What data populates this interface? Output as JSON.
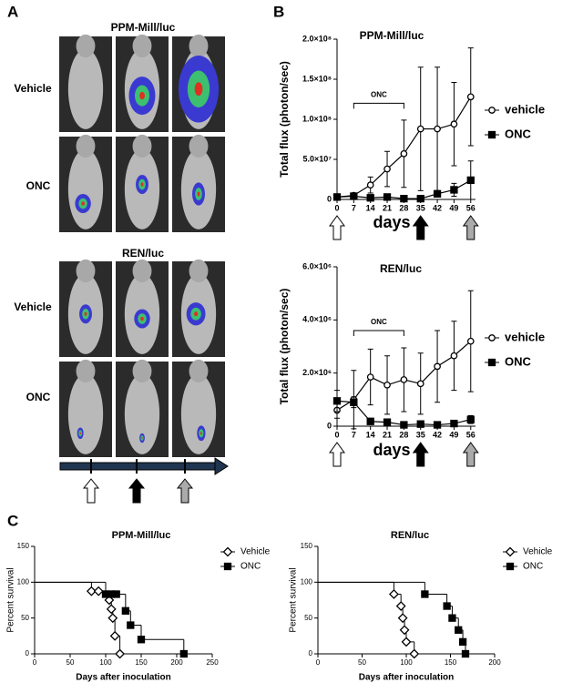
{
  "panels": [
    "A",
    "B",
    "C"
  ],
  "panel_a": {
    "groups": [
      {
        "title": "PPM-Mill/luc",
        "rows": [
          "Vehicle",
          "ONC"
        ]
      },
      {
        "title": "REN/luc",
        "rows": [
          "Vehicle",
          "ONC"
        ]
      }
    ]
  },
  "chart_data": [
    {
      "type": "line",
      "title": "PPM-Mill/luc",
      "y_label": "Total flux (photon/sec)",
      "x_label": "days",
      "annotation": "ONC",
      "x": [
        0,
        7,
        14,
        21,
        28,
        35,
        42,
        49,
        56
      ],
      "xlim": [
        0,
        58
      ],
      "xticks": [
        0,
        7,
        14,
        21,
        28,
        35,
        42,
        49,
        56
      ],
      "ylim": [
        0,
        200000000
      ],
      "yticks": [
        0,
        {
          "value": 50000000,
          "label": "5.0×10⁷"
        },
        {
          "value": 100000000,
          "label": "1.0×10⁸"
        },
        {
          "value": 150000000,
          "label": "1.5×10⁸"
        },
        {
          "value": 200000000,
          "label": "2.0×10⁸"
        }
      ],
      "series": [
        {
          "name": "vehicle",
          "color": "#000000",
          "marker": "circle-open",
          "values": [
            3000000,
            5000000,
            18000000,
            38000000,
            57000000,
            88000000,
            88000000,
            94000000,
            128000000
          ],
          "errors": [
            2000000,
            3000000,
            10000000,
            22000000,
            42000000,
            77000000,
            77000000,
            52000000,
            61000000
          ]
        },
        {
          "name": "ONC",
          "color": "#000000",
          "marker": "square",
          "values": [
            3000000,
            4000000,
            2000000,
            3000000,
            1000000,
            1000000,
            7000000,
            12000000,
            24000000
          ],
          "errors": [
            2000000,
            2000000,
            1000000,
            1000000,
            1000000,
            1000000,
            4000000,
            8000000,
            24000000
          ]
        }
      ]
    },
    {
      "type": "line",
      "title": "REN/luc",
      "y_label": "Total flux (photon/sec)",
      "x_label": "days",
      "annotation": "ONC",
      "x": [
        0,
        7,
        14,
        21,
        28,
        35,
        42,
        49,
        56
      ],
      "xlim": [
        0,
        58
      ],
      "xticks": [
        0,
        7,
        14,
        21,
        28,
        35,
        42,
        49,
        56
      ],
      "ylim": [
        0,
        6000000
      ],
      "yticks": [
        0,
        {
          "value": 2000000,
          "label": "2.0×10⁶"
        },
        {
          "value": 4000000,
          "label": "4.0×10⁶"
        },
        {
          "value": 6000000,
          "label": "6.0×10⁶"
        }
      ],
      "series": [
        {
          "name": "vehicle",
          "color": "#000000",
          "marker": "circle-open",
          "values": [
            600000,
            1000000,
            1850000,
            1550000,
            1750000,
            1600000,
            2250000,
            2650000,
            3200000
          ],
          "errors": [
            300000,
            1100000,
            1050000,
            1100000,
            1200000,
            1150000,
            1350000,
            1300000,
            1900000
          ]
        },
        {
          "name": "ONC",
          "color": "#000000",
          "marker": "square",
          "values": [
            950000,
            900000,
            180000,
            150000,
            50000,
            80000,
            50000,
            100000,
            250000
          ],
          "errors": [
            400000,
            200000,
            60000,
            60000,
            30000,
            40000,
            30000,
            50000,
            150000
          ]
        }
      ]
    },
    {
      "type": "step",
      "title": "PPM-Mill/luc",
      "y_label": "Percent survival",
      "x_label": "Days after inoculation",
      "xlim": [
        0,
        250
      ],
      "xticks": [
        0,
        50,
        100,
        150,
        200,
        250
      ],
      "ylim": [
        0,
        150
      ],
      "yticks": [
        0,
        50,
        100,
        150
      ],
      "series": [
        {
          "name": "Vehicle",
          "color": "#000000",
          "marker": "diamond-open",
          "x": [
            0,
            80,
            90,
            105,
            108,
            110,
            113,
            120
          ],
          "values": [
            100,
            87.5,
            87.5,
            75,
            62.5,
            50,
            25,
            0
          ]
        },
        {
          "name": "ONC",
          "color": "#000000",
          "marker": "square",
          "x": [
            0,
            100,
            108,
            115,
            128,
            135,
            150,
            210
          ],
          "values": [
            100,
            83.3,
            83.3,
            83.3,
            60,
            40,
            20,
            0
          ]
        }
      ]
    },
    {
      "type": "step",
      "title": "REN/luc",
      "y_label": "Percent survival",
      "x_label": "Days after inoculation",
      "xlim": [
        0,
        200
      ],
      "xticks": [
        0,
        50,
        100,
        150,
        200
      ],
      "ylim": [
        0,
        150
      ],
      "yticks": [
        0,
        50,
        100,
        150
      ],
      "series": [
        {
          "name": "Vehicle",
          "color": "#000000",
          "marker": "diamond-open",
          "x": [
            0,
            86,
            94,
            96,
            98,
            100,
            109
          ],
          "values": [
            100,
            83.3,
            66.7,
            50,
            33.3,
            16.7,
            0
          ]
        },
        {
          "name": "ONC",
          "color": "#000000",
          "marker": "square",
          "x": [
            0,
            121,
            146,
            152,
            159,
            164,
            167
          ],
          "values": [
            100,
            83.3,
            66.7,
            50,
            33.3,
            16.7,
            0
          ]
        }
      ]
    }
  ]
}
